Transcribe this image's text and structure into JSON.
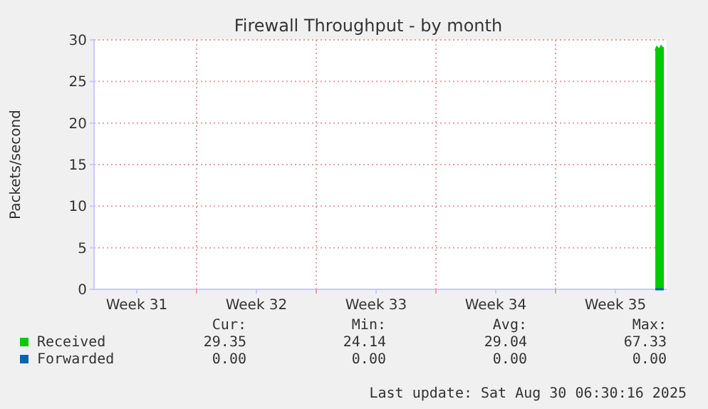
{
  "chart_data": {
    "type": "area",
    "title": "Firewall Throughput - by month",
    "ylabel": "Packets/second",
    "x": [
      "2025-08-30T20:00",
      "2025-08-30T22:00",
      "2025-08-31T00:00",
      "2025-08-31T02:00",
      "2025-08-31T04:00",
      "2025-08-31T06:00",
      "2025-08-31T08:00"
    ],
    "series": [
      {
        "name": "Received",
        "color": "#00cc00",
        "values": [
          28.7,
          29.2,
          29.0,
          28.9,
          29.3,
          29.1,
          29.0
        ]
      },
      {
        "name": "Forwarded",
        "type": "line",
        "color": "#0066b3",
        "values": [
          0,
          0,
          0,
          0,
          0,
          0,
          0
        ]
      }
    ],
    "xlim": [
      "2025-07-29T00:00",
      "2025-08-31T12:00"
    ],
    "xticks": [
      {
        "value": "2025-07-31T12:00",
        "label": "Week 31"
      },
      {
        "value": "2025-08-04",
        "label": null
      },
      {
        "value": "2025-08-07T12:00",
        "label": "Week 32"
      },
      {
        "value": "2025-08-11",
        "label": null
      },
      {
        "value": "2025-08-14T12:00",
        "label": "Week 33"
      },
      {
        "value": "2025-08-18",
        "label": null
      },
      {
        "value": "2025-08-21T12:00",
        "label": "Week 34"
      },
      {
        "value": "2025-08-25",
        "label": null
      },
      {
        "value": "2025-08-28T12:00",
        "label": "Week 35"
      }
    ],
    "ylim": [
      0,
      30
    ],
    "yticks": [
      0,
      5,
      10,
      15,
      20,
      25,
      30
    ],
    "grid": true,
    "legend": "bottom",
    "annotations": [
      "Cur:",
      "Min:",
      "Avg:",
      "Max:",
      "29.35",
      "24.14",
      "29.04",
      "67.33",
      "0.00",
      "0.00",
      "0.00",
      "0.00",
      "Last update: Sat Aug 30 06:30:16 2025"
    ]
  }
}
